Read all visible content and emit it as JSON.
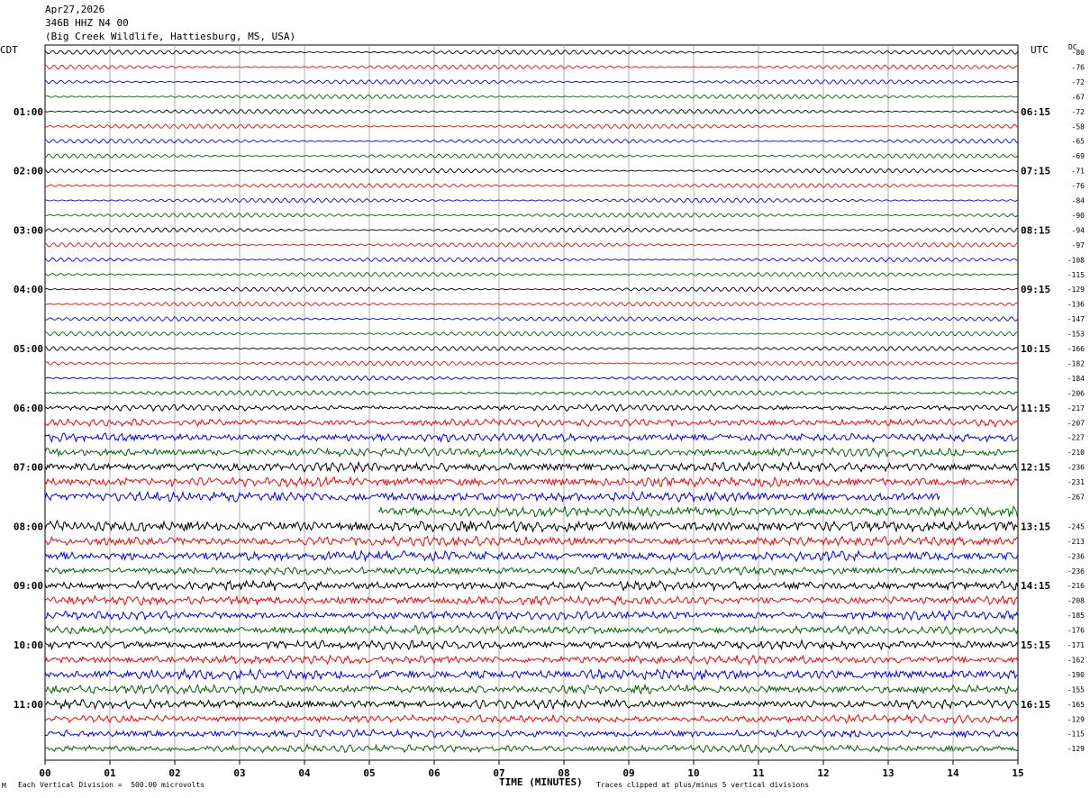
{
  "header": {
    "date": "Apr27,2026",
    "station": "346B HHZ N4 00",
    "location": "(Big Creek Wildlife, Hattiesburg, MS, USA)"
  },
  "left_zone": "CDT",
  "right_zone": "UTC",
  "dc_label": "DC",
  "footer": {
    "scale_note": "Each Vertical Division =  500.00 microvolts",
    "clip_note": "Traces clipped at plus/minus 5 vertical divisions",
    "mark": "M"
  },
  "colors": {
    "trace_cycle": [
      "#000000",
      "#ff0000",
      "#0000ff",
      "#006600"
    ],
    "grid": "#888888"
  },
  "chart_data": {
    "type": "line",
    "title": "",
    "xlabel": "TIME (MINUTES)",
    "x_ticks": [
      "00",
      "01",
      "02",
      "03",
      "04",
      "05",
      "06",
      "07",
      "08",
      "09",
      "10",
      "11",
      "12",
      "13",
      "14",
      "15"
    ],
    "xlim": [
      0,
      15
    ],
    "left_hour_labels": [
      "01:00",
      "02:00",
      "03:00",
      "04:00",
      "05:00",
      "06:00",
      "07:00",
      "08:00",
      "09:00",
      "10:00",
      "11:00"
    ],
    "right_hour_labels": [
      "06:15",
      "07:15",
      "08:15",
      "09:15",
      "10:15",
      "11:15",
      "12:15",
      "13:15",
      "14:15",
      "15:15",
      "16:15"
    ],
    "dc_offsets": [
      "-80",
      "-76",
      "-72",
      "-67",
      "-72",
      "-58",
      "-65",
      "-69",
      "-71",
      "-76",
      "-84",
      "-90",
      "-94",
      "-97",
      "-108",
      "-115",
      "-129",
      "-136",
      "-147",
      "-153",
      "-166",
      "-182",
      "-184",
      "-206",
      "-217",
      "-207",
      "-227",
      "-210",
      "-236",
      "-231",
      "-267",
      "",
      "-245",
      "-213",
      "-236",
      "-236",
      "-216",
      "-208",
      "-185",
      "-176",
      "-171",
      "-162",
      "-190",
      "-155",
      "-165",
      "-129",
      "-115",
      "-129"
    ],
    "trace_activity": [
      1,
      1,
      1,
      1,
      1,
      1,
      1,
      1,
      1,
      1,
      1,
      1,
      1,
      1,
      1,
      1,
      1,
      1,
      1,
      1,
      1,
      1,
      1.3,
      1.6,
      2.2,
      2.8,
      3.2,
      3.2,
      3.6,
      3.6,
      3.8,
      3.8,
      4.2,
      3.6,
      3.8,
      3.2,
      3.6,
      3.4,
      3.2,
      3.2,
      3.4,
      3.2,
      3.8,
      3.4,
      3.4,
      3.0,
      3.0,
      3.0
    ],
    "trace_count": 48,
    "minutes_per_trace": 15
  }
}
